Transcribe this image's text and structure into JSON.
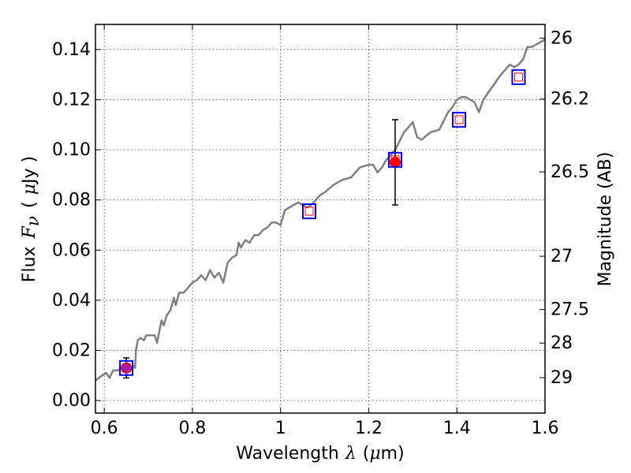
{
  "chart_data": {
    "type": "line",
    "xlabel_parts": [
      "Wavelength",
      "λ",
      "(",
      "μ",
      "m)"
    ],
    "ylabel_parts": [
      "Flux",
      "F",
      "ν",
      "(",
      "μ",
      "Jy )"
    ],
    "y2label": "Magnitude (AB)",
    "xlim": [
      0.58,
      1.6
    ],
    "ylim": [
      -0.005,
      0.15
    ],
    "grid": true,
    "x_ticks": [
      0.6,
      0.8,
      1.0,
      1.2,
      1.4,
      1.6
    ],
    "x_tick_labels": [
      "0.6",
      "0.8",
      "1",
      "1.2",
      "1.4",
      "1.6"
    ],
    "y_ticks": [
      0.0,
      0.02,
      0.04,
      0.06,
      0.08,
      0.1,
      0.12,
      0.14
    ],
    "y_tick_labels": [
      "0.00",
      "0.02",
      "0.04",
      "0.06",
      "0.08",
      "0.10",
      "0.12",
      "0.14"
    ],
    "y2_ticks": [
      26,
      26.2,
      26.5,
      27,
      27.5,
      28,
      29
    ],
    "y2_tick_labels": [
      "26",
      "26.2",
      "26.5",
      "27",
      "27.5",
      "28",
      "29"
    ],
    "colors": {
      "spectrum": "#808080",
      "model_marker": "#0000ff",
      "model_inner": "#ff0000",
      "observed": "#ff0000",
      "observed_first": "#a020a0",
      "errorbar": "#000000"
    },
    "series": [
      {
        "kind": "spectrum",
        "points": [
          [
            0.58,
            0.008
          ],
          [
            0.595,
            0.01
          ],
          [
            0.605,
            0.011
          ],
          [
            0.612,
            0.009
          ],
          [
            0.62,
            0.012
          ],
          [
            0.63,
            0.012
          ],
          [
            0.64,
            0.013
          ],
          [
            0.648,
            0.012
          ],
          [
            0.655,
            0.013
          ],
          [
            0.66,
            0.012
          ],
          [
            0.665,
            0.014
          ],
          [
            0.67,
            0.013
          ],
          [
            0.672,
            0.02
          ],
          [
            0.676,
            0.024
          ],
          [
            0.682,
            0.025
          ],
          [
            0.69,
            0.024
          ],
          [
            0.695,
            0.026
          ],
          [
            0.705,
            0.026
          ],
          [
            0.715,
            0.026
          ],
          [
            0.72,
            0.023
          ],
          [
            0.73,
            0.032
          ],
          [
            0.735,
            0.03
          ],
          [
            0.742,
            0.034
          ],
          [
            0.75,
            0.036
          ],
          [
            0.758,
            0.041
          ],
          [
            0.762,
            0.038
          ],
          [
            0.77,
            0.043
          ],
          [
            0.78,
            0.043
          ],
          [
            0.79,
            0.045
          ],
          [
            0.8,
            0.047
          ],
          [
            0.81,
            0.048
          ],
          [
            0.82,
            0.05
          ],
          [
            0.83,
            0.048
          ],
          [
            0.84,
            0.052
          ],
          [
            0.85,
            0.049
          ],
          [
            0.86,
            0.051
          ],
          [
            0.87,
            0.047
          ],
          [
            0.88,
            0.055
          ],
          [
            0.89,
            0.057
          ],
          [
            0.9,
            0.058
          ],
          [
            0.905,
            0.063
          ],
          [
            0.91,
            0.061
          ],
          [
            0.92,
            0.064
          ],
          [
            0.93,
            0.063
          ],
          [
            0.94,
            0.066
          ],
          [
            0.95,
            0.066
          ],
          [
            0.96,
            0.068
          ],
          [
            0.97,
            0.069
          ],
          [
            0.98,
            0.071
          ],
          [
            0.99,
            0.071
          ],
          [
            1.0,
            0.07
          ],
          [
            1.01,
            0.076
          ],
          [
            1.03,
            0.078
          ],
          [
            1.04,
            0.079
          ],
          [
            1.05,
            0.078
          ],
          [
            1.06,
            0.077
          ],
          [
            1.07,
            0.078
          ],
          [
            1.08,
            0.08
          ],
          [
            1.09,
            0.082
          ],
          [
            1.1,
            0.083
          ],
          [
            1.12,
            0.086
          ],
          [
            1.14,
            0.088
          ],
          [
            1.16,
            0.089
          ],
          [
            1.18,
            0.093
          ],
          [
            1.2,
            0.094
          ],
          [
            1.21,
            0.094
          ],
          [
            1.22,
            0.091
          ],
          [
            1.23,
            0.093
          ],
          [
            1.24,
            0.096
          ],
          [
            1.26,
            0.1
          ],
          [
            1.28,
            0.107
          ],
          [
            1.3,
            0.111
          ],
          [
            1.31,
            0.105
          ],
          [
            1.32,
            0.104
          ],
          [
            1.34,
            0.107
          ],
          [
            1.36,
            0.108
          ],
          [
            1.38,
            0.115
          ],
          [
            1.39,
            0.117
          ],
          [
            1.4,
            0.12
          ],
          [
            1.41,
            0.121
          ],
          [
            1.42,
            0.121
          ],
          [
            1.43,
            0.12
          ],
          [
            1.44,
            0.119
          ],
          [
            1.45,
            0.115
          ],
          [
            1.46,
            0.12
          ],
          [
            1.48,
            0.125
          ],
          [
            1.5,
            0.13
          ],
          [
            1.52,
            0.134
          ],
          [
            1.53,
            0.133
          ],
          [
            1.54,
            0.134
          ],
          [
            1.55,
            0.136
          ],
          [
            1.56,
            0.141
          ],
          [
            1.57,
            0.141
          ],
          [
            1.58,
            0.142
          ],
          [
            1.6,
            0.144
          ]
        ]
      },
      {
        "kind": "model_photometry",
        "points": [
          [
            0.65,
            0.013
          ],
          [
            1.065,
            0.0755
          ],
          [
            1.26,
            0.096
          ],
          [
            1.405,
            0.112
          ],
          [
            1.54,
            0.129
          ]
        ]
      },
      {
        "kind": "observed",
        "points": [
          {
            "x": 0.65,
            "y": 0.013,
            "err": 0.004
          },
          {
            "x": 1.26,
            "y": 0.095,
            "err": 0.017
          }
        ]
      }
    ]
  }
}
